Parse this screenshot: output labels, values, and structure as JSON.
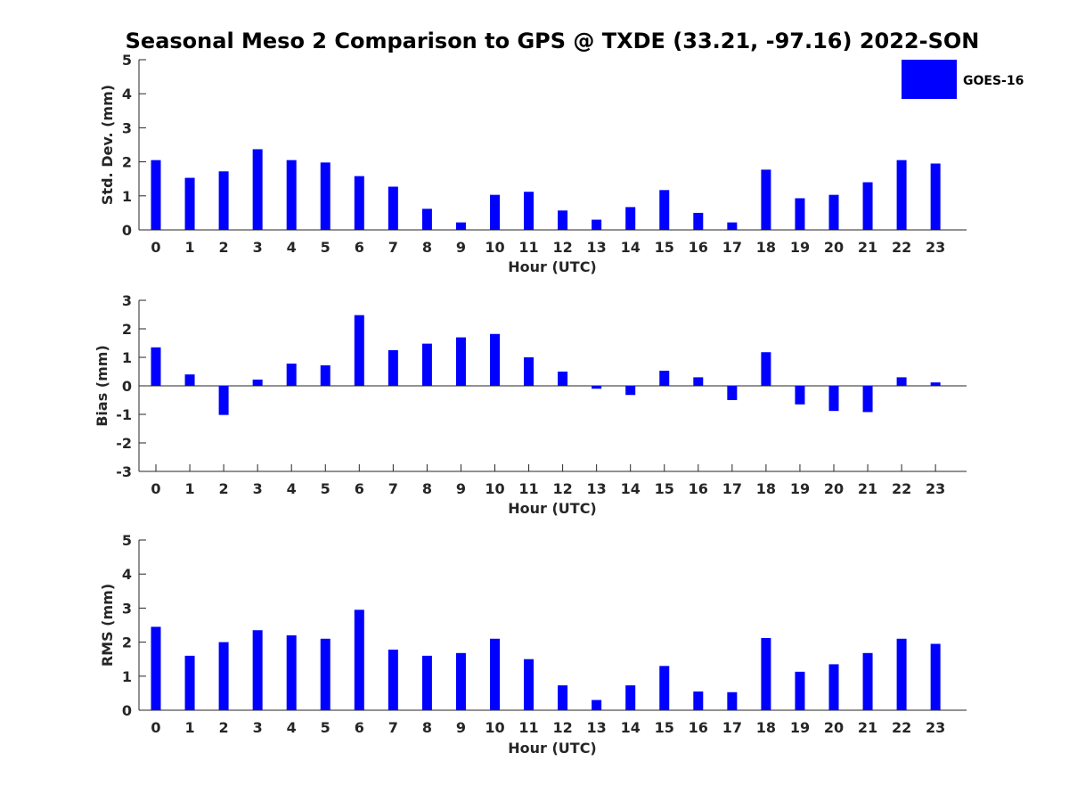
{
  "figure": {
    "title": "Seasonal Meso 2 Comparison to GPS @ TXDE (33.21, -97.16) 2022-SON",
    "legend": {
      "label": "GOES-16",
      "color": "#0000ff",
      "placement": "top-right"
    }
  },
  "chart_data": [
    {
      "type": "bar",
      "name": "std-dev",
      "categories": [
        "0",
        "1",
        "2",
        "3",
        "4",
        "5",
        "6",
        "7",
        "8",
        "9",
        "10",
        "11",
        "12",
        "13",
        "14",
        "15",
        "16",
        "17",
        "18",
        "19",
        "20",
        "21",
        "22",
        "23"
      ],
      "series": [
        {
          "values": [
            2.05,
            1.53,
            1.72,
            2.37,
            2.05,
            1.98,
            1.58,
            1.27,
            0.62,
            0.22,
            1.03,
            1.12,
            0.57,
            0.3,
            0.67,
            1.17,
            0.5,
            0.22,
            1.77,
            0.93,
            1.03,
            1.4,
            2.05,
            1.95
          ]
        }
      ],
      "xlabel": "Hour (UTC)",
      "ylabel": "Std. Dev. (mm)",
      "ylim": [
        0,
        5
      ],
      "yticks": [
        0,
        1,
        2,
        3,
        4,
        5
      ],
      "grid": false,
      "color": "#0000ff"
    },
    {
      "type": "bar",
      "name": "bias",
      "categories": [
        "0",
        "1",
        "2",
        "3",
        "4",
        "5",
        "6",
        "7",
        "8",
        "9",
        "10",
        "11",
        "12",
        "13",
        "14",
        "15",
        "16",
        "17",
        "18",
        "19",
        "20",
        "21",
        "22",
        "23"
      ],
      "series": [
        {
          "values": [
            1.35,
            0.4,
            -1.02,
            0.22,
            0.78,
            0.72,
            2.48,
            1.25,
            1.48,
            1.7,
            1.82,
            1.0,
            0.5,
            -0.1,
            -0.32,
            0.53,
            0.3,
            -0.5,
            1.18,
            -0.65,
            -0.88,
            -0.92,
            0.3,
            0.12
          ]
        }
      ],
      "xlabel": "Hour (UTC)",
      "ylabel": "Bias (mm)",
      "ylim": [
        -3,
        3
      ],
      "yticks": [
        -3,
        -2,
        -1,
        0,
        1,
        2,
        3
      ],
      "zero_line": true,
      "grid": false,
      "color": "#0000ff"
    },
    {
      "type": "bar",
      "name": "rms",
      "categories": [
        "0",
        "1",
        "2",
        "3",
        "4",
        "5",
        "6",
        "7",
        "8",
        "9",
        "10",
        "11",
        "12",
        "13",
        "14",
        "15",
        "16",
        "17",
        "18",
        "19",
        "20",
        "21",
        "22",
        "23"
      ],
      "series": [
        {
          "values": [
            2.45,
            1.6,
            2.0,
            2.35,
            2.2,
            2.1,
            2.95,
            1.78,
            1.6,
            1.68,
            2.1,
            1.5,
            0.73,
            0.3,
            0.73,
            1.3,
            0.55,
            0.53,
            2.12,
            1.13,
            1.35,
            1.68,
            2.1,
            1.95
          ]
        }
      ],
      "xlabel": "Hour (UTC)",
      "ylabel": "RMS (mm)",
      "ylim": [
        0,
        5
      ],
      "yticks": [
        0,
        1,
        2,
        3,
        4,
        5
      ],
      "grid": false,
      "color": "#0000ff"
    }
  ]
}
